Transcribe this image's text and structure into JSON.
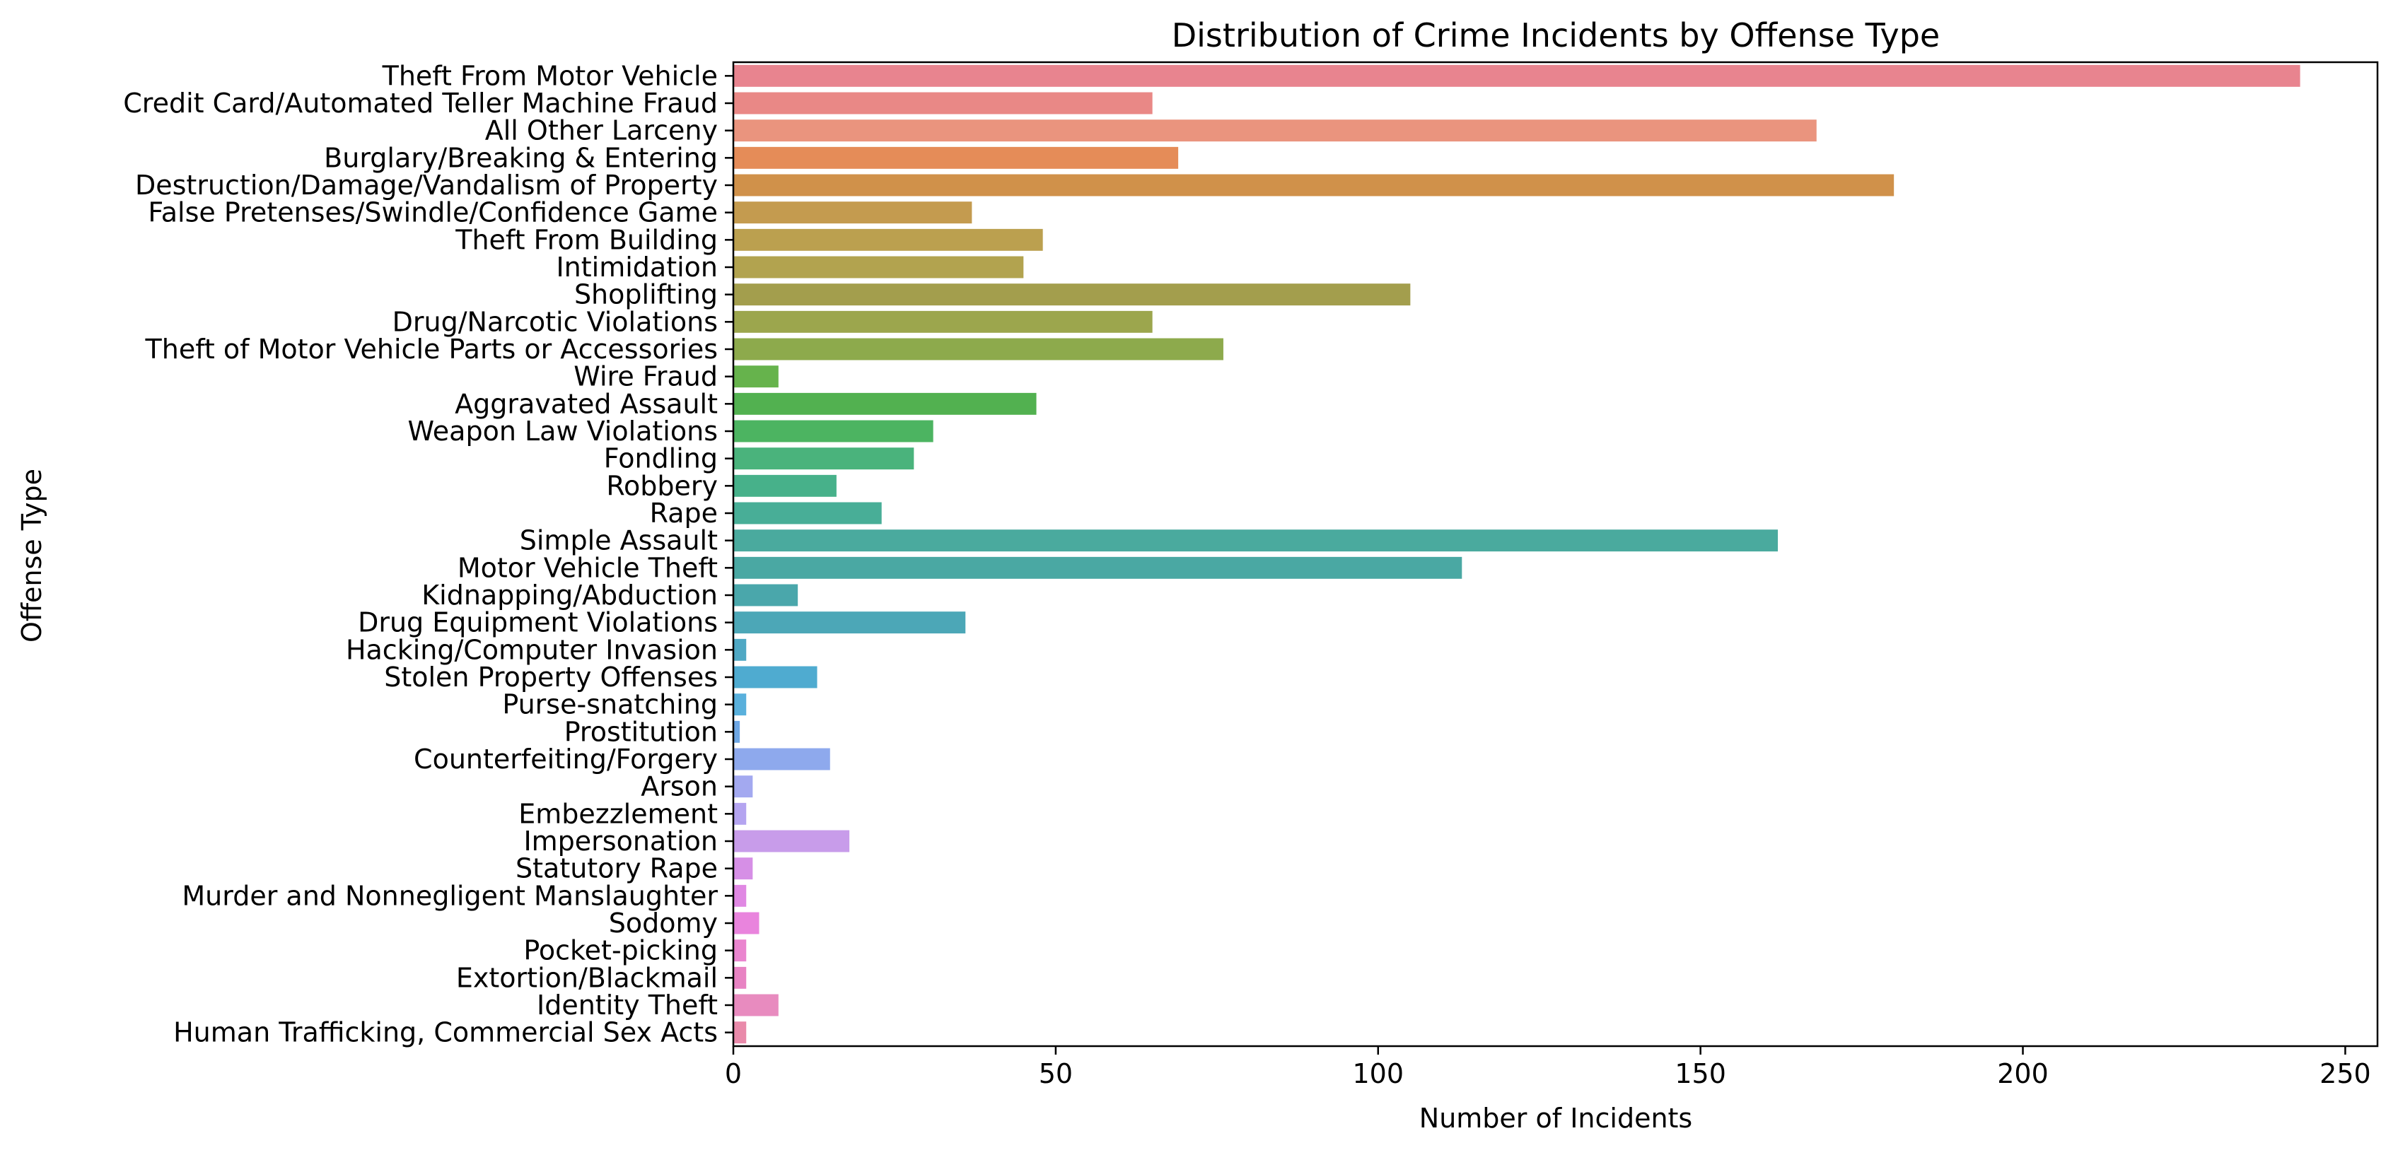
{
  "chart_data": {
    "type": "bar",
    "orientation": "horizontal",
    "title": "Distribution of Crime Incidents by Offense Type",
    "xlabel": "Number of Incidents",
    "ylabel": "Offense Type",
    "xlim": [
      0,
      255
    ],
    "xticks": [
      0,
      50,
      100,
      150,
      200,
      250
    ],
    "grid": false,
    "categories": [
      "Theft From Motor Vehicle",
      "Credit Card/Automated Teller Machine Fraud",
      "All Other Larceny",
      "Burglary/Breaking & Entering",
      "Destruction/Damage/Vandalism of Property",
      "False Pretenses/Swindle/Confidence Game",
      "Theft From Building",
      "Intimidation",
      "Shoplifting",
      "Drug/Narcotic Violations",
      "Theft of Motor Vehicle Parts or Accessories",
      "Wire Fraud",
      "Aggravated Assault",
      "Weapon Law Violations",
      "Fondling",
      "Robbery",
      "Rape",
      "Simple Assault",
      "Motor Vehicle Theft",
      "Kidnapping/Abduction",
      "Drug Equipment Violations",
      "Hacking/Computer Invasion",
      "Stolen Property Offenses",
      "Purse-snatching",
      "Prostitution",
      "Counterfeiting/Forgery",
      "Arson",
      "Embezzlement",
      "Impersonation",
      "Statutory Rape",
      "Murder and Nonnegligent Manslaughter",
      "Sodomy",
      "Pocket-picking",
      "Extortion/Blackmail",
      "Identity Theft",
      "Human Trafficking, Commercial Sex Acts"
    ],
    "values": [
      243,
      65,
      168,
      69,
      180,
      37,
      48,
      45,
      105,
      65,
      76,
      7,
      47,
      31,
      28,
      16,
      23,
      162,
      113,
      10,
      36,
      2,
      13,
      2,
      1,
      15,
      3,
      2,
      18,
      3,
      2,
      4,
      2,
      2,
      7,
      2
    ],
    "colors": [
      "#e8848f",
      "#e98886",
      "#ea947e",
      "#e58c58",
      "#d0914a",
      "#c49b4f",
      "#bba04f",
      "#b2a34f",
      "#a39e4d",
      "#9ca64d",
      "#8daa4c",
      "#66b34c",
      "#52b150",
      "#4cb461",
      "#4ab37c",
      "#47b18a",
      "#48ae97",
      "#4aaa9e",
      "#4aa8a3",
      "#4aa7ab",
      "#4ca7b7",
      "#4fa8c4",
      "#4fabd0",
      "#59b0dc",
      "#6ea7e4",
      "#8ea9ed",
      "#a3a9f0",
      "#b4a4f0",
      "#c89cea",
      "#d68fe6",
      "#e088e3",
      "#e984dd",
      "#ea85cf",
      "#e883c3",
      "#e88bbf",
      "#e98aaa"
    ]
  }
}
